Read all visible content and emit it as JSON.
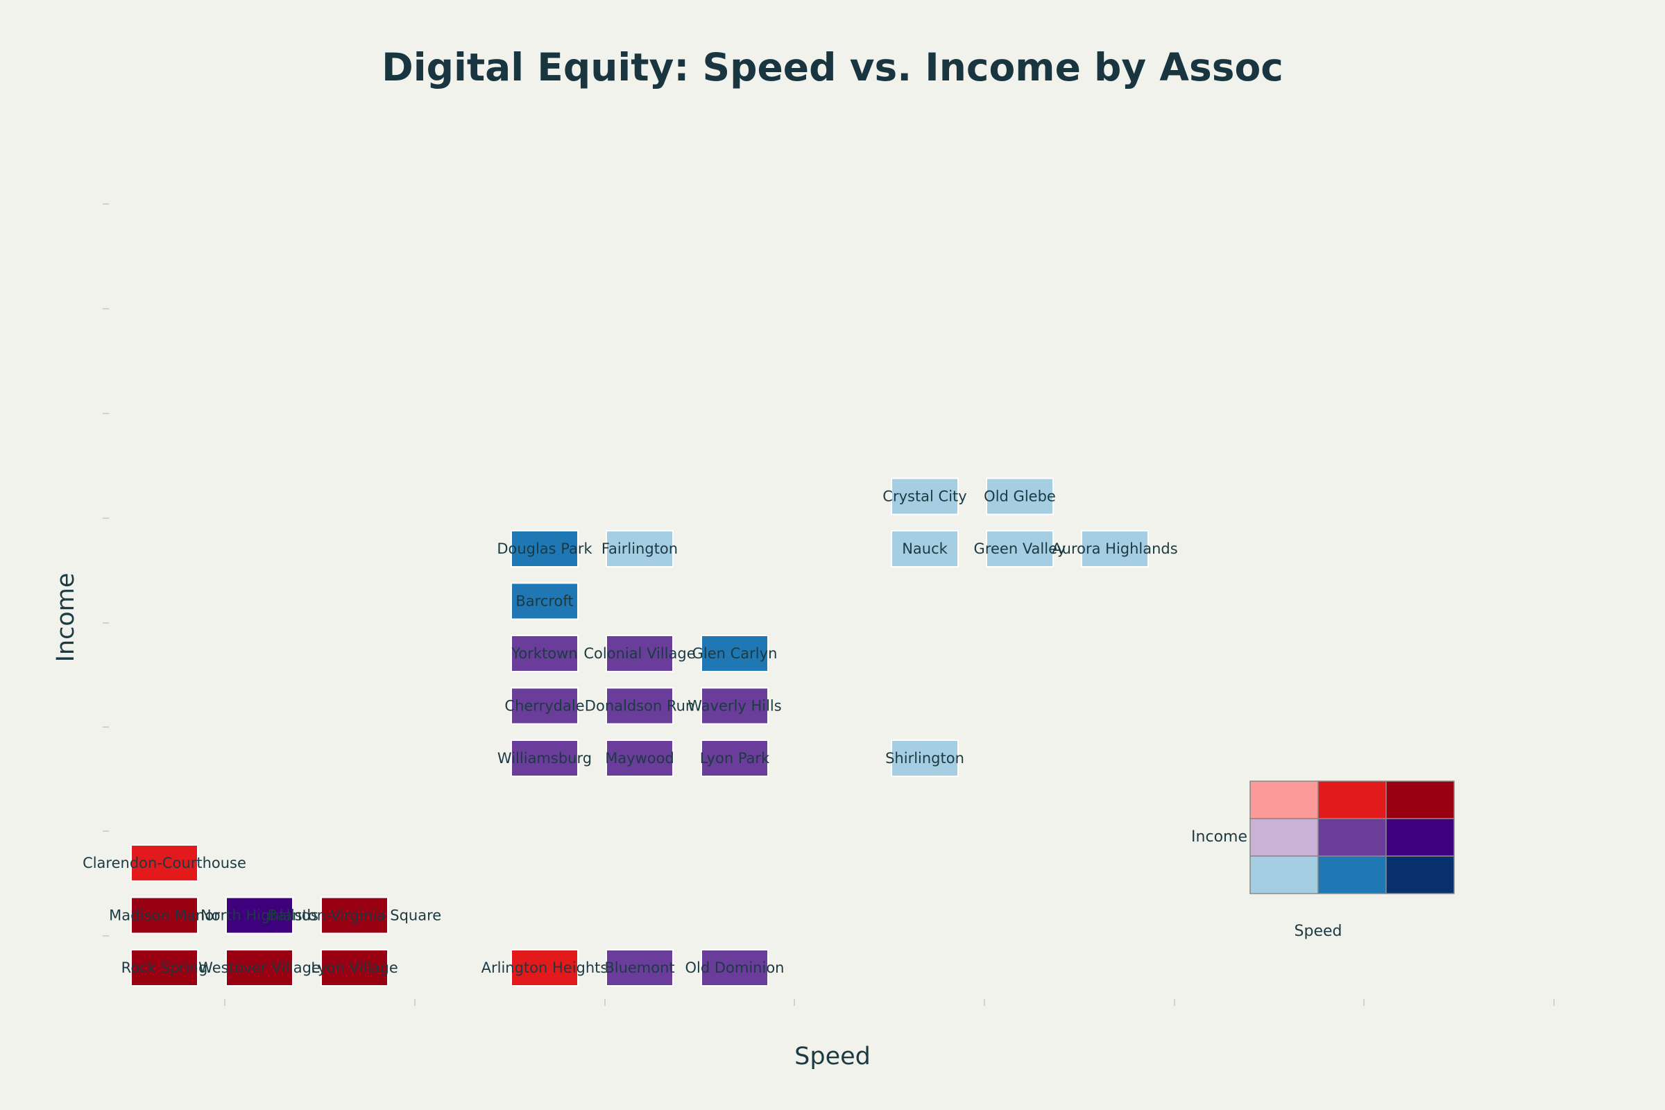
{
  "chart_data": {
    "type": "heatmap",
    "title": "Digital Equity: Speed vs. Income by Assoc",
    "xlabel": "Speed",
    "ylabel": "Income",
    "grid": false,
    "legend_placement": "bottom-right",
    "legend": {
      "xlabel": "Speed",
      "ylabel": "Income",
      "colors": [
        [
          "#fb9a99",
          "#e31a1c",
          "#990012"
        ],
        [
          "#cab2d6",
          "#6a3d9a",
          "#3f007d"
        ],
        [
          "#a6cee3",
          "#1f78b4",
          "#08306b"
        ]
      ]
    },
    "cells": [
      {
        "label": "Rock Spring",
        "col": 0,
        "row": 0,
        "color": "#990012"
      },
      {
        "label": "Westover Village",
        "col": 1,
        "row": 0,
        "color": "#990012"
      },
      {
        "label": "Lyon Village",
        "col": 2,
        "row": 0,
        "color": "#990012"
      },
      {
        "label": "Arlington Heights",
        "col": 4,
        "row": 0,
        "color": "#e31a1c"
      },
      {
        "label": "Bluemont",
        "col": 5,
        "row": 0,
        "color": "#6a3d9a"
      },
      {
        "label": "Old Dominion",
        "col": 6,
        "row": 0,
        "color": "#6a3d9a"
      },
      {
        "label": "Madison Manor",
        "col": 0,
        "row": 1,
        "color": "#990012"
      },
      {
        "label": "North Highlands",
        "col": 1,
        "row": 1,
        "color": "#3f007d"
      },
      {
        "label": "Ballston-Virginia Square",
        "col": 2,
        "row": 1,
        "color": "#990012"
      },
      {
        "label": "Clarendon-Courthouse",
        "col": 0,
        "row": 2,
        "color": "#e31a1c"
      },
      {
        "label": "Williamsburg",
        "col": 4,
        "row": 4,
        "color": "#6a3d9a"
      },
      {
        "label": "Maywood",
        "col": 5,
        "row": 4,
        "color": "#6a3d9a"
      },
      {
        "label": "Lyon Park",
        "col": 6,
        "row": 4,
        "color": "#6a3d9a"
      },
      {
        "label": "Shirlington",
        "col": 8,
        "row": 4,
        "color": "#a6cee3"
      },
      {
        "label": "Cherrydale",
        "col": 4,
        "row": 5,
        "color": "#6a3d9a"
      },
      {
        "label": "Donaldson Run",
        "col": 5,
        "row": 5,
        "color": "#6a3d9a"
      },
      {
        "label": "Waverly Hills",
        "col": 6,
        "row": 5,
        "color": "#6a3d9a"
      },
      {
        "label": "Yorktown",
        "col": 4,
        "row": 6,
        "color": "#6a3d9a"
      },
      {
        "label": "Colonial Village",
        "col": 5,
        "row": 6,
        "color": "#6a3d9a"
      },
      {
        "label": "Glen Carlyn",
        "col": 6,
        "row": 6,
        "color": "#1f78b4"
      },
      {
        "label": "Barcroft",
        "col": 4,
        "row": 7,
        "color": "#1f78b4"
      },
      {
        "label": "Douglas Park",
        "col": 4,
        "row": 8,
        "color": "#1f78b4"
      },
      {
        "label": "Fairlington",
        "col": 5,
        "row": 8,
        "color": "#a6cee3"
      },
      {
        "label": "Nauck",
        "col": 8,
        "row": 8,
        "color": "#a6cee3"
      },
      {
        "label": "Green Valley",
        "col": 9,
        "row": 8,
        "color": "#a6cee3"
      },
      {
        "label": "Aurora Highlands",
        "col": 10,
        "row": 8,
        "color": "#a6cee3"
      },
      {
        "label": "Crystal City",
        "col": 8,
        "row": 9,
        "color": "#a6cee3"
      },
      {
        "label": "Old Glebe",
        "col": 9,
        "row": 9,
        "color": "#a6cee3"
      }
    ]
  }
}
